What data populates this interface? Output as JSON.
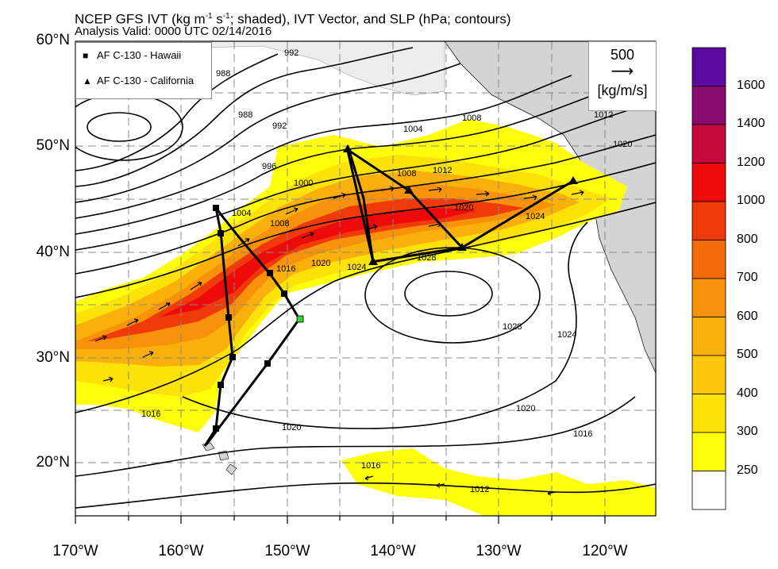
{
  "title": {
    "main": "NCEP GFS IVT (kg m",
    "sup1": "-1",
    "mid": " s",
    "sup2": "-1",
    "rest": "; shaded), IVT Vector, and SLP (hPa; contours)",
    "valid": "Analysis Valid: 0000 UTC 02/14/2016"
  },
  "axes": {
    "lat_labels": [
      "60°N",
      "50°N",
      "40°N",
      "30°N",
      "20°N"
    ],
    "lon_labels": [
      "170°W",
      "160°W",
      "150°W",
      "140°W",
      "130°W",
      "120°W"
    ]
  },
  "legend": {
    "items": [
      {
        "symbol": "square",
        "label": "AF C-130 - Hawaii"
      },
      {
        "symbol": "triangle",
        "label": "AF C-130 - California"
      }
    ]
  },
  "reference_vector": {
    "value": "500",
    "units": "[kg/m/s]"
  },
  "colorbar": {
    "levels": [
      {
        "label": "1600",
        "color": "#5a0a9e"
      },
      {
        "label": "1400",
        "color": "#8a0a6e"
      },
      {
        "label": "1200",
        "color": "#c40a3c"
      },
      {
        "label": "1000",
        "color": "#ee0a0a"
      },
      {
        "label": "800",
        "color": "#f03a0a"
      },
      {
        "label": "700",
        "color": "#f56a0a"
      },
      {
        "label": "600",
        "color": "#f7920a"
      },
      {
        "label": "500",
        "color": "#fab00a"
      },
      {
        "label": "400",
        "color": "#fcc60a"
      },
      {
        "label": "300",
        "color": "#fde20a"
      },
      {
        "label": "250",
        "color": "#fefe0a"
      },
      {
        "label": "",
        "color": "#ffffff"
      }
    ]
  },
  "slp_contour_labels": [
    "992",
    "988",
    "988",
    "992",
    "996",
    "1000",
    "1004",
    "1008",
    "1004",
    "1008",
    "1012",
    "1016",
    "1020",
    "1024",
    "1020",
    "1024",
    "1028",
    "1028",
    "1024",
    "1020",
    "1020",
    "1016",
    "1016",
    "1016",
    "1012",
    "1012",
    "1020",
    "1008"
  ],
  "colors": {
    "land": "#d4d4d4",
    "contour": "#000000",
    "grid": "#888888",
    "marker": "#35d235"
  }
}
